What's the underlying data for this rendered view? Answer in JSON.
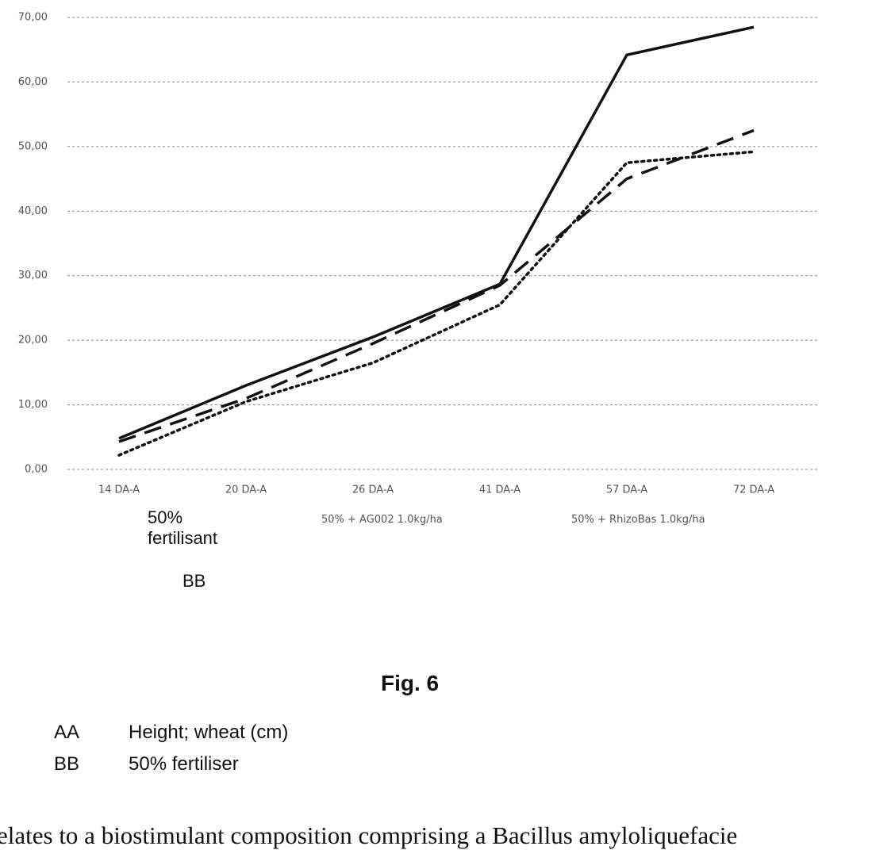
{
  "chart_data": {
    "type": "line",
    "categories": [
      "14 DA-A",
      "20 DA-A",
      "26 DA-A",
      "41 DA-A",
      "57 DA-A",
      "72 DA-A"
    ],
    "series": [
      {
        "name": "50% fertilisant",
        "color": "#111111",
        "line_style": "dotted",
        "values": [
          2.2,
          10.5,
          16.5,
          25.5,
          47.5,
          49.2
        ]
      },
      {
        "name": "50% + AG002 1.0kg/ha",
        "color": "#111111",
        "line_style": "solid",
        "values": [
          4.8,
          13.0,
          20.5,
          28.7,
          64.2,
          68.5
        ]
      },
      {
        "name": "50% + RhizoBas 1.0kg/ha",
        "color": "#111111",
        "line_style": "dashed",
        "values": [
          4.3,
          11.0,
          19.5,
          28.5,
          45.0,
          52.5
        ]
      }
    ],
    "ylim": [
      0,
      70
    ],
    "yticks": [
      {
        "value": 0,
        "label": "0,00"
      },
      {
        "value": 10,
        "label": "10,00"
      },
      {
        "value": 20,
        "label": "20,00"
      },
      {
        "value": 30,
        "label": "30,00"
      },
      {
        "value": 40,
        "label": "40,00"
      },
      {
        "value": 50,
        "label": "50,00"
      },
      {
        "value": 60,
        "label": "60,00"
      },
      {
        "value": 70,
        "label": "70,00"
      }
    ],
    "grid": true,
    "annotations": [
      "BB"
    ]
  },
  "figure_label": "Fig. 6",
  "key": [
    [
      "AA",
      "Height; wheat (cm)"
    ],
    [
      "BB",
      "50% fertiliser"
    ]
  ],
  "body_text": "elates to a biostimulant composition comprising a Bacillus amyloliquefacie"
}
